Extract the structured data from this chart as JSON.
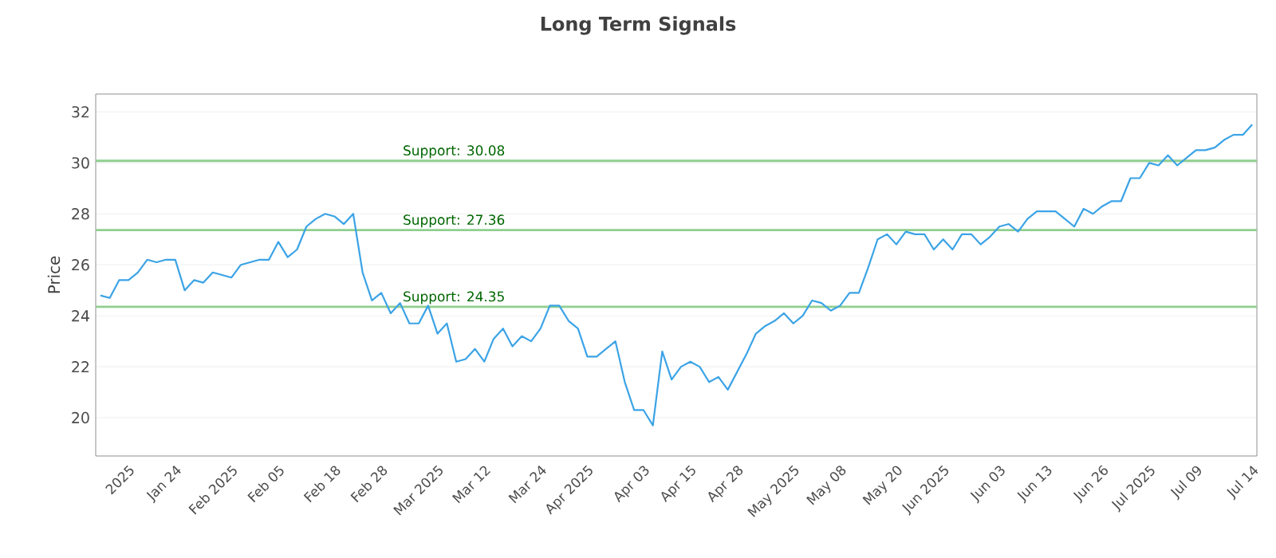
{
  "chart_data": {
    "type": "line",
    "title": "Long Term Signals",
    "ylabel": "Price",
    "categories": [
      null,
      null,
      null,
      "2025",
      null,
      null,
      null,
      null,
      "Jan 24",
      null,
      null,
      null,
      null,
      null,
      "Feb 2025",
      null,
      null,
      null,
      null,
      "Feb 05",
      null,
      null,
      null,
      null,
      null,
      "Feb 18",
      null,
      null,
      null,
      null,
      "Feb 28",
      null,
      null,
      null,
      null,
      null,
      "Mar 2025",
      null,
      null,
      null,
      null,
      "Mar 12",
      null,
      null,
      null,
      null,
      null,
      "Mar 24",
      null,
      null,
      null,
      null,
      "Apr 2025",
      null,
      null,
      null,
      null,
      null,
      "Apr 03",
      null,
      null,
      null,
      null,
      "Apr 15",
      null,
      null,
      null,
      null,
      "Apr 28",
      null,
      null,
      null,
      null,
      null,
      "May 2025",
      null,
      null,
      null,
      null,
      "May 08",
      null,
      null,
      null,
      null,
      null,
      "May 20",
      null,
      null,
      null,
      null,
      "Jun 2025",
      null,
      null,
      null,
      null,
      null,
      "Jun 03",
      null,
      null,
      null,
      null,
      "Jun 13",
      null,
      null,
      null,
      null,
      null,
      "Jun 26",
      null,
      null,
      null,
      null,
      "Jul 2025",
      null,
      null,
      null,
      null,
      "Jul 09",
      null,
      null,
      null,
      null,
      null,
      "Jul 14"
    ],
    "values": [
      24.8,
      24.7,
      25.4,
      25.4,
      25.7,
      26.2,
      26.1,
      26.2,
      26.2,
      25.0,
      25.4,
      25.3,
      25.7,
      25.6,
      25.5,
      26.0,
      26.1,
      26.2,
      26.2,
      26.9,
      26.3,
      26.6,
      27.5,
      27.8,
      28.0,
      27.9,
      27.6,
      28.0,
      25.7,
      24.6,
      24.9,
      24.1,
      24.5,
      23.7,
      23.7,
      24.4,
      23.3,
      23.7,
      22.2,
      22.3,
      22.7,
      22.2,
      23.1,
      23.5,
      22.8,
      23.2,
      23.0,
      23.5,
      24.4,
      24.4,
      23.8,
      23.5,
      22.4,
      22.4,
      22.7,
      23.0,
      21.4,
      20.3,
      20.3,
      19.7,
      22.6,
      21.5,
      22.0,
      22.2,
      22.0,
      21.4,
      21.6,
      21.1,
      21.8,
      22.5,
      23.3,
      23.6,
      23.8,
      24.1,
      23.7,
      24.0,
      24.6,
      24.5,
      24.2,
      24.4,
      24.9,
      24.9,
      25.9,
      27.0,
      27.2,
      26.8,
      27.3,
      27.2,
      27.2,
      26.6,
      27.0,
      26.6,
      27.2,
      27.2,
      26.8,
      27.1,
      27.5,
      27.6,
      27.3,
      27.8,
      28.1,
      28.1,
      28.1,
      27.8,
      27.5,
      28.2,
      28.0,
      28.3,
      28.5,
      28.5,
      29.4,
      29.4,
      30.0,
      29.9,
      30.3,
      29.9,
      30.2,
      30.5,
      30.5,
      30.6,
      30.9,
      31.1,
      31.1,
      31.5
    ],
    "color": "#3ba3e6",
    "ylim": [
      18.5,
      32.7
    ],
    "yticks": [
      20,
      22,
      24,
      26,
      28,
      30,
      32
    ],
    "grid": "y",
    "marker": "none",
    "line_style": "solid",
    "ref_lines": [
      {
        "axis": "y",
        "value": 30.08,
        "label": "Support: 30.08",
        "color": "#8fcf8f"
      },
      {
        "axis": "y",
        "value": 27.36,
        "label": "Support: 27.36",
        "color": "#8fcf8f"
      },
      {
        "axis": "y",
        "value": 24.35,
        "label": "Support: 24.35",
        "color": "#8fcf8f"
      }
    ]
  }
}
